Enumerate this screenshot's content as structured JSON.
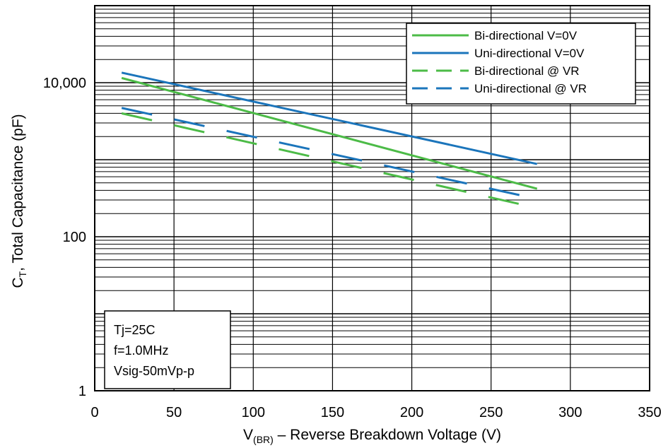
{
  "chart_data": {
    "type": "line",
    "title": "",
    "xlabel": {
      "main": "V",
      "sub": "(BR)",
      "rest": " – Reverse Breakdown Voltage (V)"
    },
    "ylabel": {
      "main": "C",
      "sub": "T",
      "rest": ", Total Capacitance (pF)"
    },
    "xlim": [
      0,
      350
    ],
    "ylim": [
      1,
      100000
    ],
    "yscale": "log",
    "grid": true,
    "x_ticks": [
      "0",
      "50",
      "100",
      "150",
      "200",
      "250",
      "300",
      "350"
    ],
    "y_ticks": [
      {
        "value": 1,
        "label": "1"
      },
      {
        "value": 100,
        "label": "100"
      },
      {
        "value": 10000,
        "label": "10,000"
      }
    ],
    "legend_position": "top-right",
    "series": [
      {
        "name": "Bi-directional V=0V",
        "color": "#4CBB47",
        "style": "solid",
        "x": [
          17,
          279
        ],
        "y": [
          11500,
          420
        ]
      },
      {
        "name": "Uni-directional V=0V",
        "color": "#1B75BB",
        "style": "solid",
        "x": [
          17,
          279
        ],
        "y": [
          13500,
          880
        ]
      },
      {
        "name": "Bi-directional @ VR",
        "color": "#4CBB47",
        "style": "dashed",
        "x": [
          17,
          270
        ],
        "y": [
          4000,
          260
        ]
      },
      {
        "name": "Uni-directional @ VR",
        "color": "#1B75BB",
        "style": "dashed",
        "x": [
          17,
          270
        ],
        "y": [
          4700,
          340
        ]
      }
    ],
    "annotation": [
      "Tj=25C",
      "f=1.0MHz",
      "Vsig-50mVp-p"
    ]
  }
}
